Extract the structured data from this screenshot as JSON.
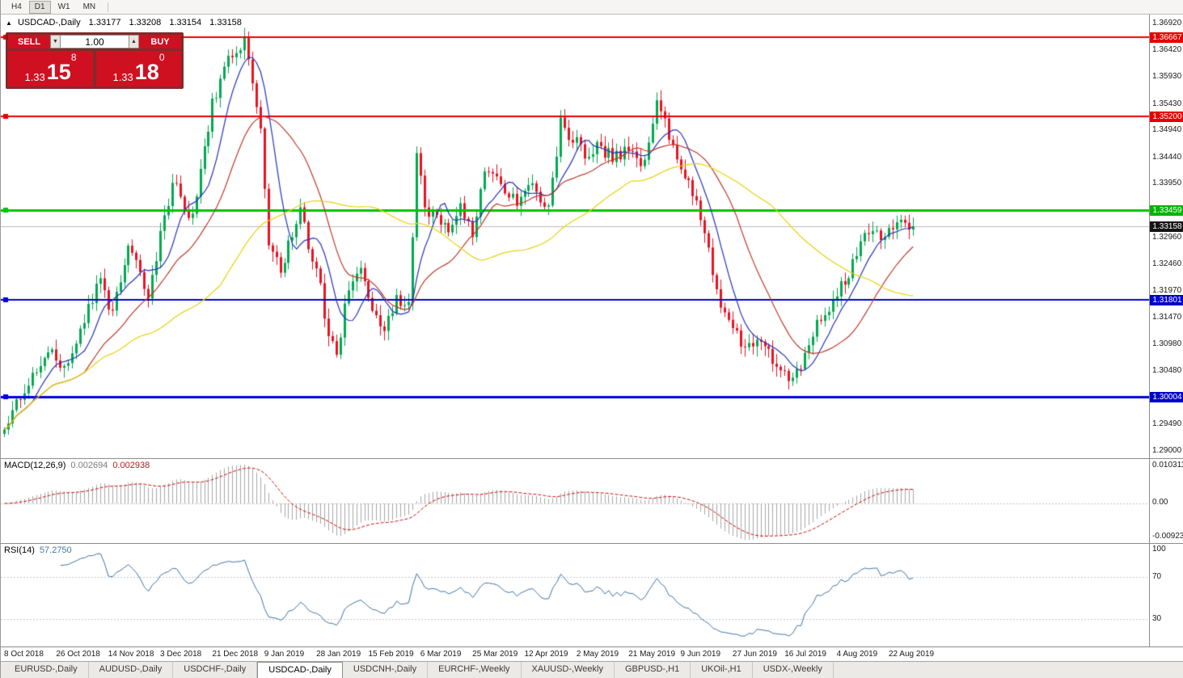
{
  "toolbar": {
    "timeframes": [
      "H4",
      "D1",
      "W1",
      "MN"
    ],
    "active": "D1"
  },
  "chart": {
    "title": "USDCAD-,Daily",
    "collapse_icon": "▲",
    "ohlc": {
      "o": "1.33177",
      "h": "1.33208",
      "l": "1.33154",
      "c": "1.33158"
    },
    "trade_panel": {
      "sell_label": "SELL",
      "buy_label": "BUY",
      "volume": "1.00",
      "spin_down": "▼",
      "spin_up": "▲",
      "sell_price": {
        "prefix": "1.33",
        "big": "15",
        "sup": "8"
      },
      "buy_price": {
        "prefix": "1.33",
        "big": "18",
        "sup": "0"
      }
    },
    "current_price": 1.33158,
    "levels": [
      {
        "price": 1.36667,
        "color": "#e60000",
        "width": 2,
        "handle": true
      },
      {
        "price": 1.352,
        "color": "#e60000",
        "width": 2,
        "handle": true
      },
      {
        "price": 1.33459,
        "color": "#00c400",
        "width": 3,
        "handle": true
      },
      {
        "price": 1.31801,
        "color": "#0000dd",
        "width": 2,
        "handle": true
      },
      {
        "price": 1.30004,
        "color": "#0000dd",
        "width": 3,
        "handle": true
      }
    ],
    "badges": [
      {
        "price": 1.36667,
        "color": "#e60000"
      },
      {
        "price": 1.352,
        "color": "#e60000"
      },
      {
        "price": 1.33459,
        "color": "#00b400"
      },
      {
        "price": 1.33158,
        "color": "#141414"
      },
      {
        "price": 1.31801,
        "color": "#0000cc"
      },
      {
        "price": 1.30004,
        "color": "#0000cc"
      }
    ],
    "axis_ticks": [
      1.3692,
      1.3642,
      1.3593,
      1.3543,
      1.3494,
      1.3444,
      1.3395,
      1.3296,
      1.3246,
      1.3197,
      1.3147,
      1.3098,
      1.3048,
      1.2949,
      1.29
    ],
    "candles": {
      "count": 228,
      "up_color": "#00a94f",
      "down_color": "#ea1222",
      "keyframes": [
        [
          0,
          1.295
        ],
        [
          5,
          1.301
        ],
        [
          11,
          1.3085
        ],
        [
          16,
          1.3055
        ],
        [
          21,
          1.3165
        ],
        [
          24,
          1.3222
        ],
        [
          27,
          1.315
        ],
        [
          31,
          1.328
        ],
        [
          36,
          1.319
        ],
        [
          42,
          1.34
        ],
        [
          47,
          1.333
        ],
        [
          52,
          1.3545
        ],
        [
          57,
          1.364
        ],
        [
          60,
          1.3655
        ],
        [
          62,
          1.358
        ],
        [
          64,
          1.3505
        ],
        [
          66,
          1.328
        ],
        [
          69,
          1.3235
        ],
        [
          72,
          1.33
        ],
        [
          74,
          1.335
        ],
        [
          77,
          1.325
        ],
        [
          79,
          1.321
        ],
        [
          81,
          1.31
        ],
        [
          83,
          1.3082
        ],
        [
          86,
          1.32
        ],
        [
          89,
          1.3228
        ],
        [
          92,
          1.316
        ],
        [
          95,
          1.3132
        ],
        [
          98,
          1.3185
        ],
        [
          101,
          1.3165
        ],
        [
          103,
          1.3448
        ],
        [
          105,
          1.3355
        ],
        [
          108,
          1.333
        ],
        [
          111,
          1.3302
        ],
        [
          114,
          1.3358
        ],
        [
          117,
          1.3305
        ],
        [
          120,
          1.342
        ],
        [
          124,
          1.3392
        ],
        [
          128,
          1.3362
        ],
        [
          132,
          1.339
        ],
        [
          136,
          1.3348
        ],
        [
          139,
          1.3505
        ],
        [
          142,
          1.3478
        ],
        [
          145,
          1.3452
        ],
        [
          148,
          1.3468
        ],
        [
          152,
          1.3442
        ],
        [
          156,
          1.3462
        ],
        [
          160,
          1.3432
        ],
        [
          163,
          1.356
        ],
        [
          165,
          1.3508
        ],
        [
          168,
          1.3442
        ],
        [
          172,
          1.338
        ],
        [
          175,
          1.3302
        ],
        [
          178,
          1.3188
        ],
        [
          181,
          1.3142
        ],
        [
          185,
          1.3085
        ],
        [
          189,
          1.3112
        ],
        [
          192,
          1.3062
        ],
        [
          196,
          1.3032
        ],
        [
          199,
          1.3062
        ],
        [
          202,
          1.3122
        ],
        [
          205,
          1.3152
        ],
        [
          208,
          1.3192
        ],
        [
          211,
          1.3232
        ],
        [
          214,
          1.3282
        ],
        [
          217,
          1.3312
        ],
        [
          220,
          1.3292
        ],
        [
          223,
          1.3332
        ],
        [
          226,
          1.3308
        ],
        [
          227,
          1.33158
        ]
      ]
    },
    "ma": [
      {
        "period": 8,
        "color": "#2333c0"
      },
      {
        "period": 21,
        "color": "#c03a2a"
      },
      {
        "period": 55,
        "color": "#e7d40a"
      }
    ]
  },
  "macd": {
    "label": "MACD(12,26,9)",
    "value1": "0.002694",
    "value2": "0.002938",
    "scale_top": "0.010311",
    "scale_zero": "0.00",
    "scale_bottom": "-0.0092303",
    "hist_color": "#a8a8a8",
    "signal_color": "#cc1111"
  },
  "rsi": {
    "label": "RSI(14)",
    "value": "57.2750",
    "scale": [
      "100",
      "70",
      "30"
    ],
    "levels": [
      70,
      30
    ],
    "line_color": "#4075a6",
    "level_color": "#c2cad6"
  },
  "dates": [
    "8 Oct 2018",
    "26 Oct 2018",
    "14 Nov 2018",
    "3 Dec 2018",
    "21 Dec 2018",
    "9 Jan 2019",
    "28 Jan 2019",
    "15 Feb 2019",
    "6 Mar 2019",
    "25 Mar 2019",
    "12 Apr 2019",
    "2 May 2019",
    "21 May 2019",
    "9 Jun 2019",
    "27 Jun 2019",
    "16 Jul 2019",
    "4 Aug 2019",
    "22 Aug 2019"
  ],
  "tabs": {
    "active_index": 3,
    "items": [
      "EURUSD-,Daily",
      "AUDUSD-,Daily",
      "USDCHF-,Daily",
      "USDCAD-,Daily",
      "USDCNH-,Daily",
      "EURCHF-,Weekly",
      "XAUUSD-,Weekly",
      "GBPUSD-,H1",
      "UKOil-,H1",
      "USDX-,Weekly"
    ]
  }
}
